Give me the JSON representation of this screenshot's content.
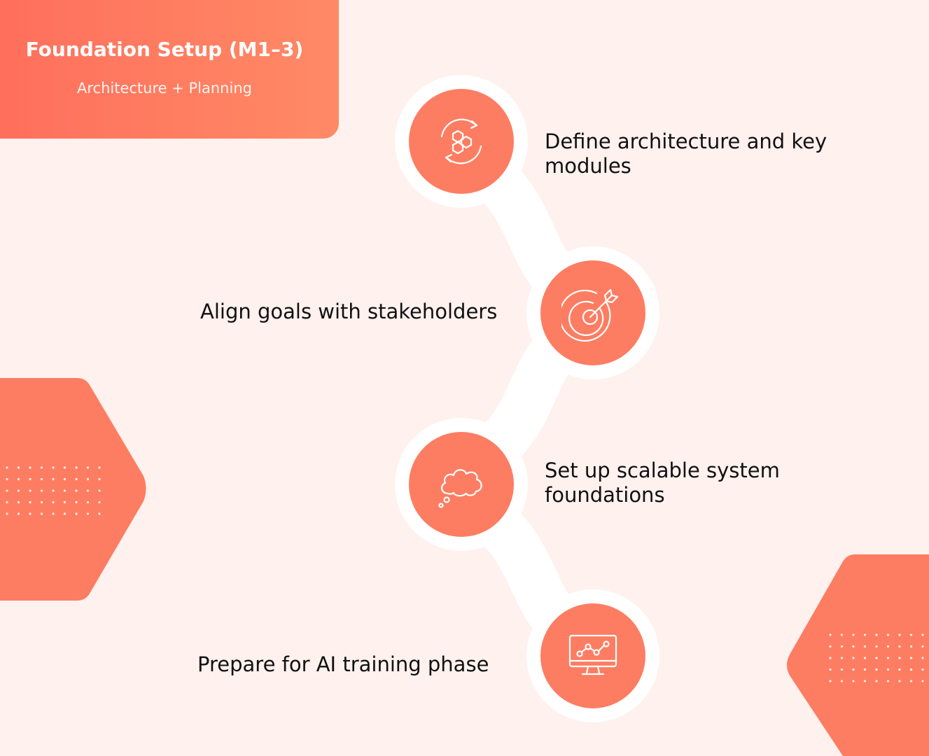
{
  "header": {
    "title": "Foundation Setup (M1–3)",
    "subtitle": "Architecture + Planning"
  },
  "steps": [
    {
      "text": "Define architecture and key modules",
      "icon": "hexagon-cycle-icon"
    },
    {
      "text": "Align goals with stakeholders",
      "icon": "target-arrow-icon"
    },
    {
      "text": "Set up scalable system foundations",
      "icon": "thought-cloud-icon"
    },
    {
      "text": "Prepare for AI training phase",
      "icon": "monitor-chart-icon"
    }
  ],
  "colors": {
    "background": "#fef1ee",
    "accent": "#fd7d62",
    "header_start": "#ff6f5c",
    "header_end": "#ff8a66",
    "path": "#ffffff"
  }
}
